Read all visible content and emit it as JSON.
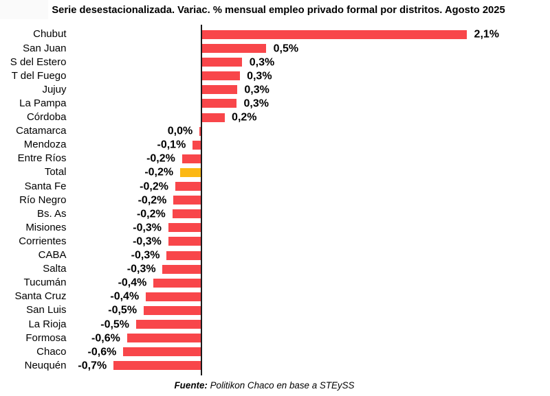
{
  "chart_data": {
    "type": "bar",
    "orientation": "horizontal",
    "title": "Serie desestacionalizada. Variac. % mensual empleo privado formal por distritos. Agosto 2025",
    "value_unit": "%",
    "categories": [
      "Chubut",
      "San Juan",
      "S del Estero",
      "T del Fuego",
      "Jujuy",
      "La Pampa",
      "Córdoba",
      "Catamarca",
      "Mendoza",
      "Entre Ríos",
      "Total",
      "Santa Fe",
      "Río Negro",
      "Bs. As",
      "Misiones",
      "Corrientes",
      "CABA",
      "Salta",
      "Tucumán",
      "Santa Cruz",
      "San Luis",
      "La Rioja",
      "Formosa",
      "Chaco",
      "Neuquén"
    ],
    "values": [
      2.1,
      0.51,
      0.32,
      0.3,
      0.28,
      0.275,
      0.18,
      -0.012,
      -0.066,
      -0.15,
      -0.165,
      -0.204,
      -0.218,
      -0.227,
      -0.258,
      -0.259,
      -0.272,
      -0.304,
      -0.376,
      -0.437,
      -0.454,
      -0.514,
      -0.586,
      -0.616,
      -0.693
    ],
    "value_labels": [
      "2,1%",
      "0,5%",
      "0,3%",
      "0,3%",
      "0,3%",
      "0,3%",
      "0,2%",
      "0,0%",
      "-0,1%",
      "-0,2%",
      "-0,2%",
      "-0,2%",
      "-0,2%",
      "-0,2%",
      "-0,3%",
      "-0,3%",
      "-0,3%",
      "-0,3%",
      "-0,4%",
      "-0,4%",
      "-0,5%",
      "-0,5%",
      "-0,6%",
      "-0,6%",
      "-0,7%"
    ],
    "highlight_category": "Total",
    "legend": "none",
    "grid": "off",
    "colors": {
      "bar": "#f8464a",
      "highlight_bar": "#fcb813",
      "axis_line": "#1a1a1a",
      "text": "#000000",
      "background": "#ffffff"
    },
    "source": {
      "prefix": "Fuente:",
      "text": " Politikon Chaco en base a STEySS"
    }
  }
}
